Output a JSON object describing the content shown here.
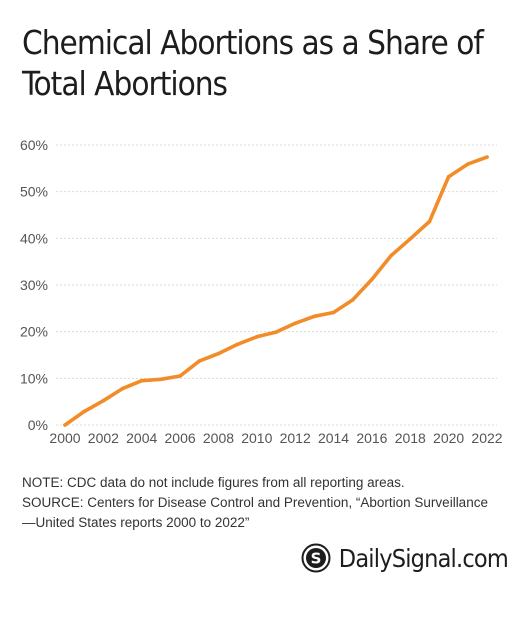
{
  "title_lines": [
    "Chemical Abortions as a Share of",
    "Total Abortions"
  ],
  "notes": {
    "note": "NOTE: CDC data do not include figures from all reporting areas.",
    "source_line1": "SOURCE: Centers for Disease Control and Prevention, “Abortion Surveillance",
    "source_line2": "—United States reports 2000 to 2022”"
  },
  "brand": {
    "name": "DailySignal.com",
    "icon": "daily-signal-logo-icon"
  },
  "colors": {
    "line": "#f28c28",
    "grid": "#d9d9d9",
    "text": "#1d1d1d"
  },
  "chart_data": {
    "type": "line",
    "title": "Chemical Abortions as a Share of Total Abortions",
    "xlabel": "",
    "ylabel": "",
    "x": [
      2000,
      2001,
      2002,
      2003,
      2004,
      2005,
      2006,
      2007,
      2008,
      2009,
      2010,
      2011,
      2012,
      2013,
      2014,
      2015,
      2016,
      2017,
      2018,
      2019,
      2020,
      2021,
      2022
    ],
    "series": [
      {
        "values": [
          0,
          2.9,
          5.2,
          7.8,
          9.5,
          9.8,
          10.5,
          13.7,
          15.3,
          17.3,
          18.9,
          19.9,
          21.8,
          23.3,
          24.1,
          26.8,
          31.2,
          36.3,
          39.9,
          43.6,
          53.2,
          55.9,
          57.4
        ]
      }
    ],
    "xlim": [
      2000,
      2022
    ],
    "ylim": [
      0,
      60
    ],
    "x_ticks": [
      "2000",
      "2002",
      "2004",
      "2006",
      "2008",
      "2010",
      "2012",
      "2014",
      "2016",
      "2018",
      "2020",
      "2022"
    ],
    "y_ticks": [
      "0%",
      "10%",
      "20%",
      "30%",
      "40%",
      "50%",
      "60%"
    ],
    "grid": true,
    "legend": "none"
  }
}
